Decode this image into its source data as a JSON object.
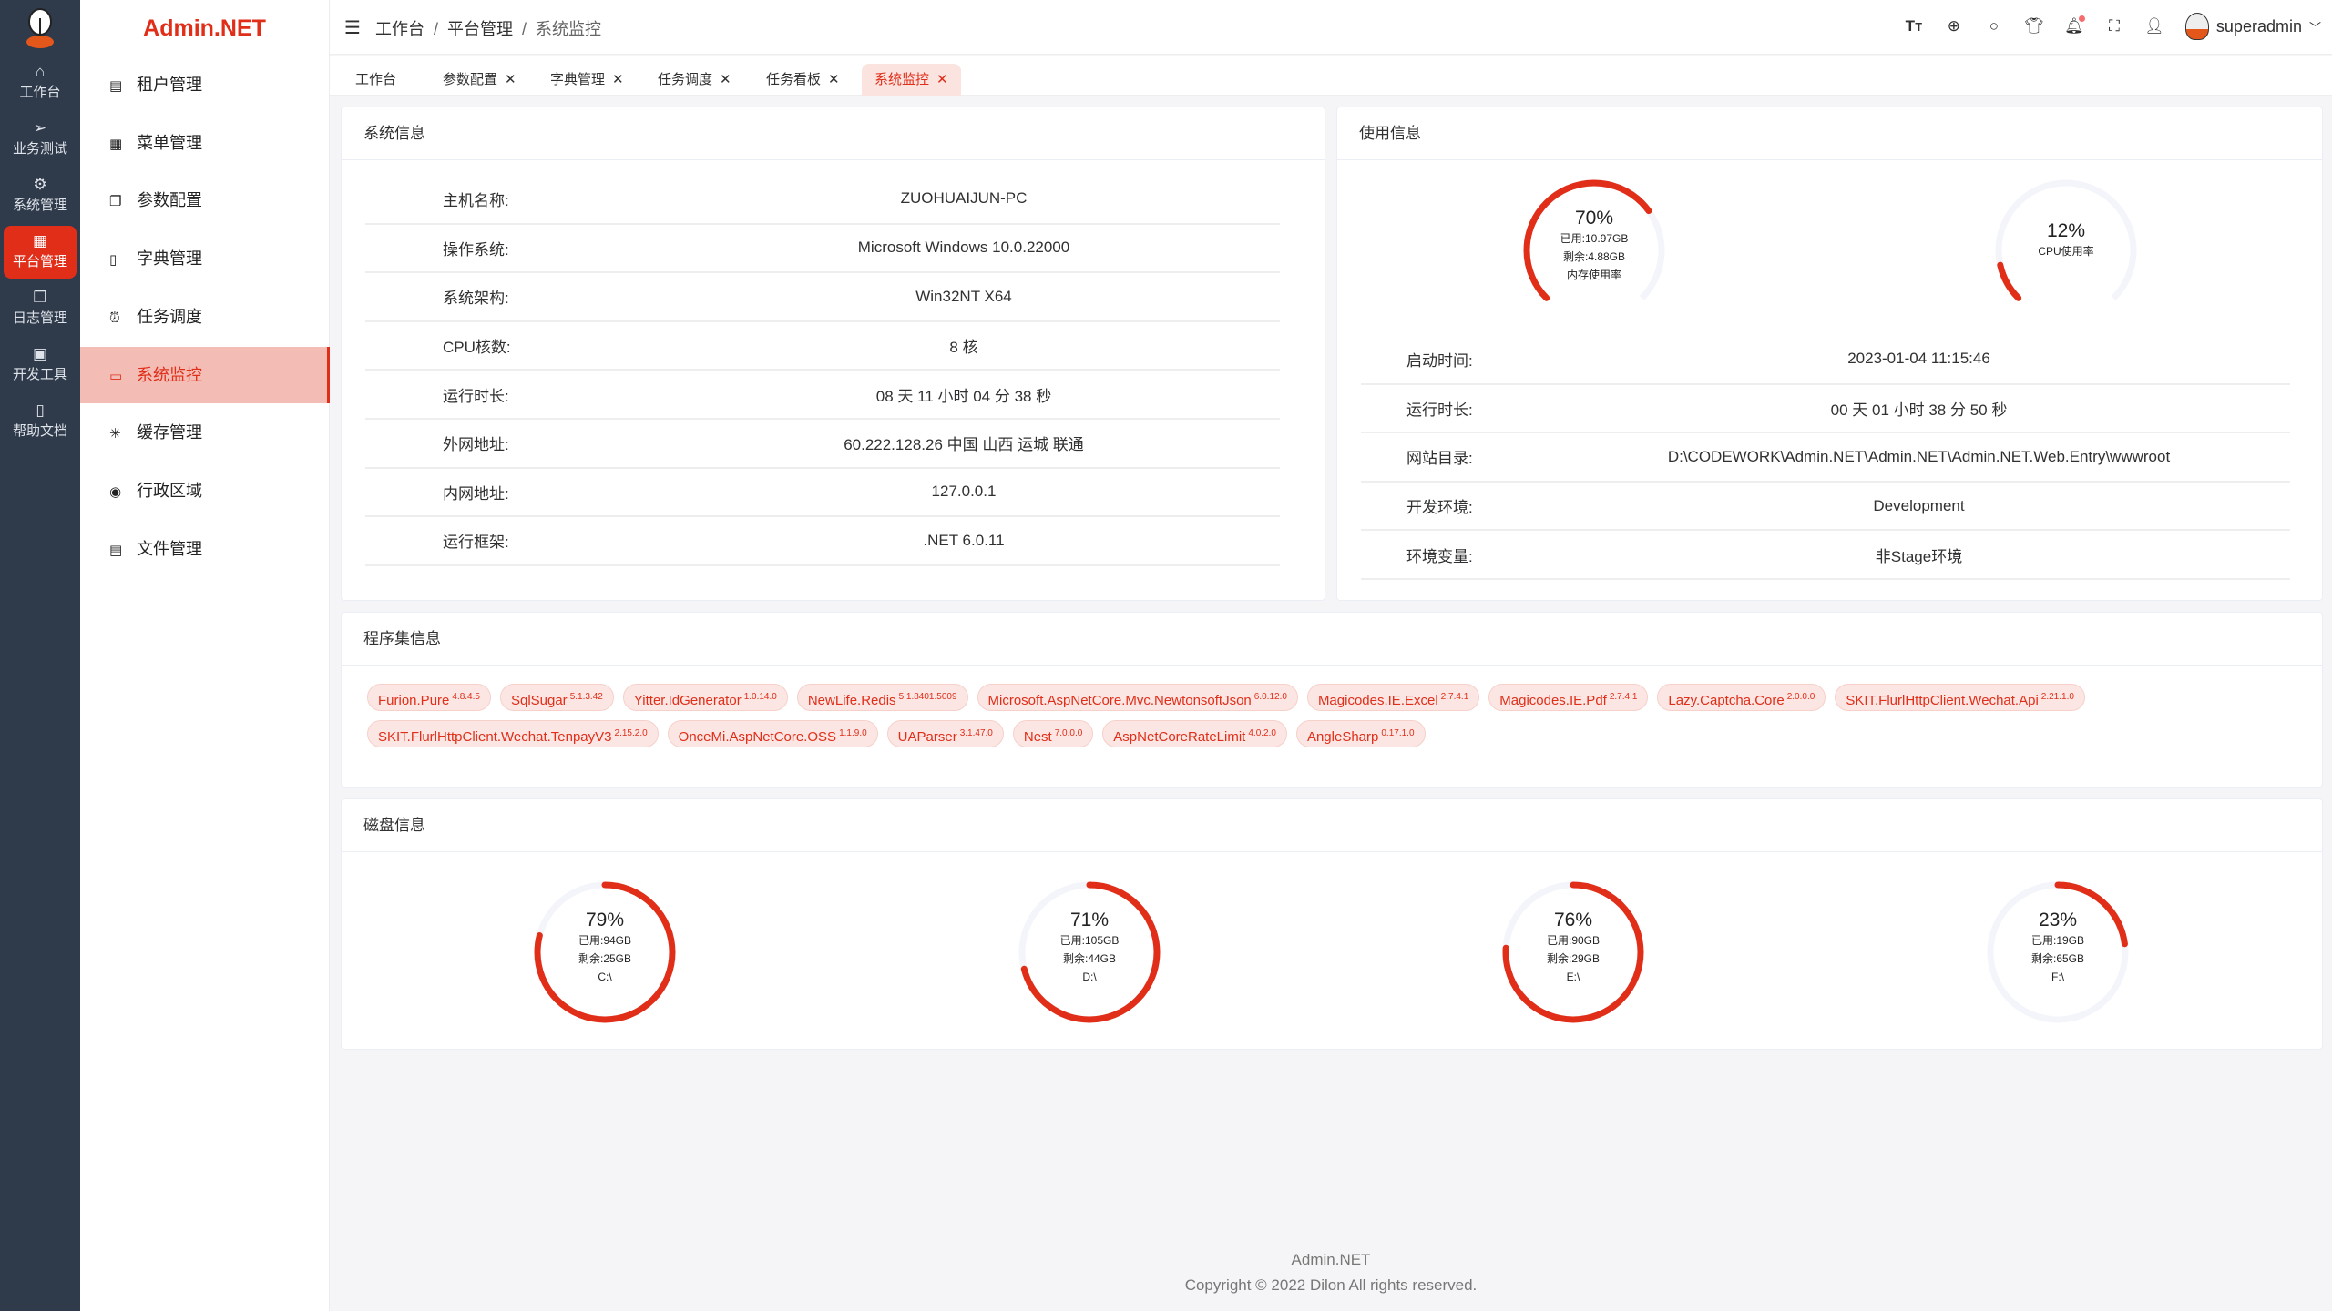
{
  "brand": "Admin.NET",
  "rail": [
    {
      "label": "工作台",
      "icon": "home-icon"
    },
    {
      "label": "业务测试",
      "icon": "send-icon"
    },
    {
      "label": "系统管理",
      "icon": "gear-icon"
    },
    {
      "label": "平台管理",
      "icon": "grid-icon",
      "active": true
    },
    {
      "label": "日志管理",
      "icon": "copy-icon"
    },
    {
      "label": "开发工具",
      "icon": "cpu-icon"
    },
    {
      "label": "帮助文档",
      "icon": "notebook-icon"
    }
  ],
  "menu": [
    {
      "label": "租户管理",
      "icon": "office-building-icon"
    },
    {
      "label": "菜单管理",
      "icon": "grid-icon"
    },
    {
      "label": "参数配置",
      "icon": "copy-document-icon"
    },
    {
      "label": "字典管理",
      "icon": "notebook-icon"
    },
    {
      "label": "任务调度",
      "icon": "alarm-clock-icon"
    },
    {
      "label": "系统监控",
      "icon": "monitor-icon",
      "active": true
    },
    {
      "label": "缓存管理",
      "icon": "loading-icon"
    },
    {
      "label": "行政区域",
      "icon": "location-icon"
    },
    {
      "label": "文件管理",
      "icon": "document-icon"
    }
  ],
  "breadcrumb": [
    "工作台",
    "平台管理",
    "系统监控"
  ],
  "user": {
    "name": "superadmin"
  },
  "tabs": [
    {
      "label": "工作台",
      "closable": false
    },
    {
      "label": "参数配置",
      "closable": true
    },
    {
      "label": "字典管理",
      "closable": true
    },
    {
      "label": "任务调度",
      "closable": true
    },
    {
      "label": "任务看板",
      "closable": true
    },
    {
      "label": "系统监控",
      "closable": true,
      "active": true
    }
  ],
  "close_glyph": "✕",
  "system_info": {
    "title": "系统信息",
    "rows": [
      {
        "label": "主机名称:",
        "value": "ZUOHUAIJUN-PC"
      },
      {
        "label": "操作系统:",
        "value": "Microsoft Windows 10.0.22000"
      },
      {
        "label": "系统架构:",
        "value": "Win32NT X64"
      },
      {
        "label": "CPU核数:",
        "value": "8 核"
      },
      {
        "label": "运行时长:",
        "value": "08 天 11 小时 04 分 38 秒"
      },
      {
        "label": "外网地址:",
        "value": "60.222.128.26 中国 山西 运城 联通"
      },
      {
        "label": "内网地址:",
        "value": "127.0.0.1"
      },
      {
        "label": "运行框架:",
        "value": ".NET 6.0.11"
      }
    ]
  },
  "usage_info": {
    "title": "使用信息",
    "memory": {
      "percent": 70,
      "used": "已用:10.97GB",
      "free": "剩余:4.88GB",
      "label": "内存使用率"
    },
    "cpu": {
      "percent": 12,
      "label": "CPU使用率"
    },
    "rows": [
      {
        "label": "启动时间:",
        "value": "2023-01-04 11:15:46"
      },
      {
        "label": "运行时长:",
        "value": "00 天 01 小时 38 分 50 秒"
      },
      {
        "label": "网站目录:",
        "value": "D:\\CODEWORK\\Admin.NET\\Admin.NET\\Admin.NET.Web.Entry\\wwwroot"
      },
      {
        "label": "开发环境:",
        "value": "Development"
      },
      {
        "label": "环境变量:",
        "value": "非Stage环境"
      }
    ]
  },
  "assemblies": {
    "title": "程序集信息",
    "items": [
      {
        "name": "Furion.Pure",
        "version": "4.8.4.5"
      },
      {
        "name": "SqlSugar",
        "version": "5.1.3.42"
      },
      {
        "name": "Yitter.IdGenerator",
        "version": "1.0.14.0"
      },
      {
        "name": "NewLife.Redis",
        "version": "5.1.8401.5009"
      },
      {
        "name": "Microsoft.AspNetCore.Mvc.NewtonsoftJson",
        "version": "6.0.12.0"
      },
      {
        "name": "Magicodes.IE.Excel",
        "version": "2.7.4.1"
      },
      {
        "name": "Magicodes.IE.Pdf",
        "version": "2.7.4.1"
      },
      {
        "name": "Lazy.Captcha.Core",
        "version": "2.0.0.0"
      },
      {
        "name": "SKIT.FlurlHttpClient.Wechat.Api",
        "version": "2.21.1.0"
      },
      {
        "name": "SKIT.FlurlHttpClient.Wechat.TenpayV3",
        "version": "2.15.2.0"
      },
      {
        "name": "OnceMi.AspNetCore.OSS",
        "version": "1.1.9.0"
      },
      {
        "name": "UAParser",
        "version": "3.1.47.0"
      },
      {
        "name": "Nest",
        "version": "7.0.0.0"
      },
      {
        "name": "AspNetCoreRateLimit",
        "version": "4.0.2.0"
      },
      {
        "name": "AngleSharp",
        "version": "0.17.1.0"
      }
    ]
  },
  "disks": {
    "title": "磁盘信息",
    "items": [
      {
        "percent": 79,
        "used": "已用:94GB",
        "free": "剩余:25GB",
        "name": "C:\\"
      },
      {
        "percent": 71,
        "used": "已用:105GB",
        "free": "剩余:44GB",
        "name": "D:\\"
      },
      {
        "percent": 76,
        "used": "已用:90GB",
        "free": "剩余:29GB",
        "name": "E:\\"
      },
      {
        "percent": 23,
        "used": "已用:19GB",
        "free": "剩余:65GB",
        "name": "F:\\"
      }
    ]
  },
  "footer": {
    "line1": "Admin.NET",
    "line2": "Copyright © 2022 Dilon All rights reserved."
  },
  "colors": {
    "accent": "#e02e19",
    "rail": "#2f3b4b",
    "track": "#f3f5fa"
  }
}
